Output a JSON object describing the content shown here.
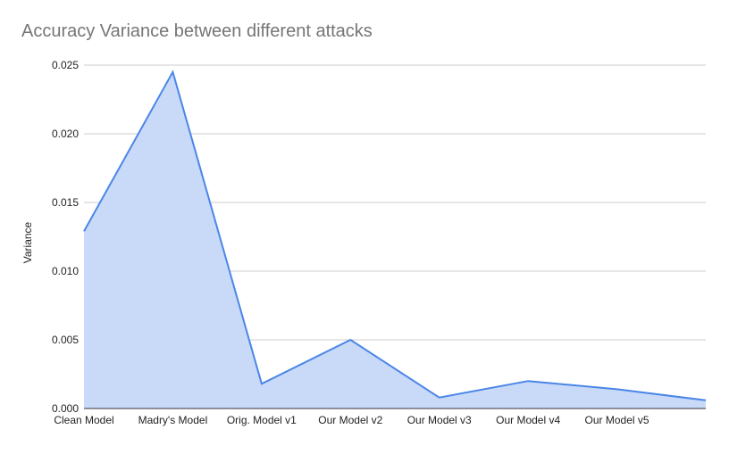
{
  "chart_data": {
    "type": "area",
    "title": "Accuracy Variance between different attacks",
    "xlabel": "",
    "ylabel": "Variance",
    "categories": [
      "Clean Model",
      "Madry's Model",
      "Orig. Model v1",
      "Our Model v2",
      "Our Model v3",
      "Our Model v4",
      "Our Model v5",
      ""
    ],
    "series": [
      {
        "values": [
          0.0129,
          0.0245,
          0.0018,
          0.005,
          0.0008,
          0.002,
          0.0014,
          0.0006
        ]
      }
    ],
    "ylim": [
      0,
      0.025
    ],
    "yticks": [
      "0.000",
      "0.005",
      "0.010",
      "0.015",
      "0.020",
      "0.025"
    ],
    "grid": true,
    "legend": "none",
    "colors": {
      "line": "#4a86e8",
      "fill": "#c9daf8",
      "grid": "#cccccc",
      "title": "#757575",
      "text": "#222222"
    }
  }
}
